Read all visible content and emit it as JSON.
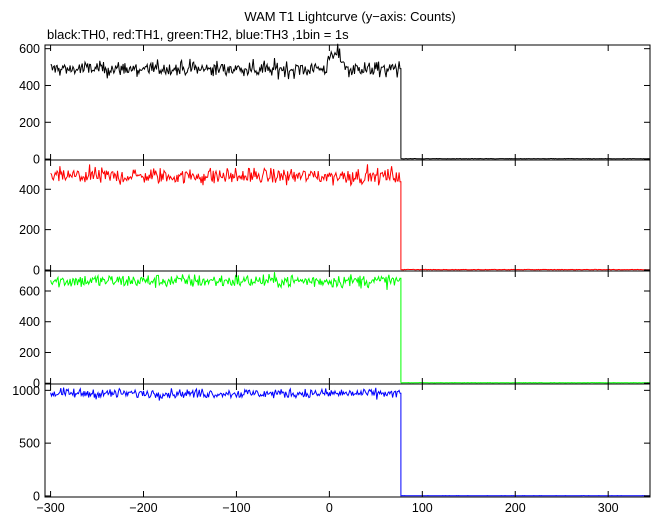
{
  "title": "WAM T1 Lightcurve (y−axis: Counts)",
  "subtitle": "black:TH0, red:TH1, green:TH2, blue:TH3 ,1bin = 1s",
  "chart_data": {
    "type": "line",
    "x_range": [
      -306,
      345
    ],
    "x_ticks": [
      -300,
      -200,
      -100,
      0,
      100,
      200,
      300
    ],
    "x_tick_labels": [
      "−300",
      "−200",
      "−100",
      "0",
      "100",
      "200",
      "300"
    ],
    "bin_seconds": 1,
    "drop_time": 77,
    "grid": false,
    "panels": [
      {
        "name": "TH0",
        "color": "#000000",
        "ylim": [
          -5,
          620
        ],
        "y_ticks": [
          0,
          200,
          400,
          600
        ],
        "level_before": 490,
        "noise": 22,
        "level_after": 2,
        "features": [
          {
            "x": 5,
            "amplitude": 70,
            "width": 7
          },
          {
            "x": 12,
            "amplitude": 40,
            "width": 5
          }
        ]
      },
      {
        "name": "TH1",
        "color": "#ff0000",
        "ylim": [
          -5,
          545
        ],
        "y_ticks": [
          0,
          200,
          400
        ],
        "level_before": 465,
        "noise": 20,
        "level_after": 2,
        "features": []
      },
      {
        "name": "TH2",
        "color": "#00ff00",
        "ylim": [
          -5,
          730
        ],
        "y_ticks": [
          0,
          200,
          400,
          600
        ],
        "level_before": 665,
        "noise": 22,
        "level_after": 3,
        "features": []
      },
      {
        "name": "TH3",
        "color": "#0000ff",
        "ylim": [
          -10,
          1060
        ],
        "y_ticks": [
          0,
          500,
          1000
        ],
        "level_before": 970,
        "noise": 22,
        "level_after": 2,
        "features": []
      }
    ]
  }
}
